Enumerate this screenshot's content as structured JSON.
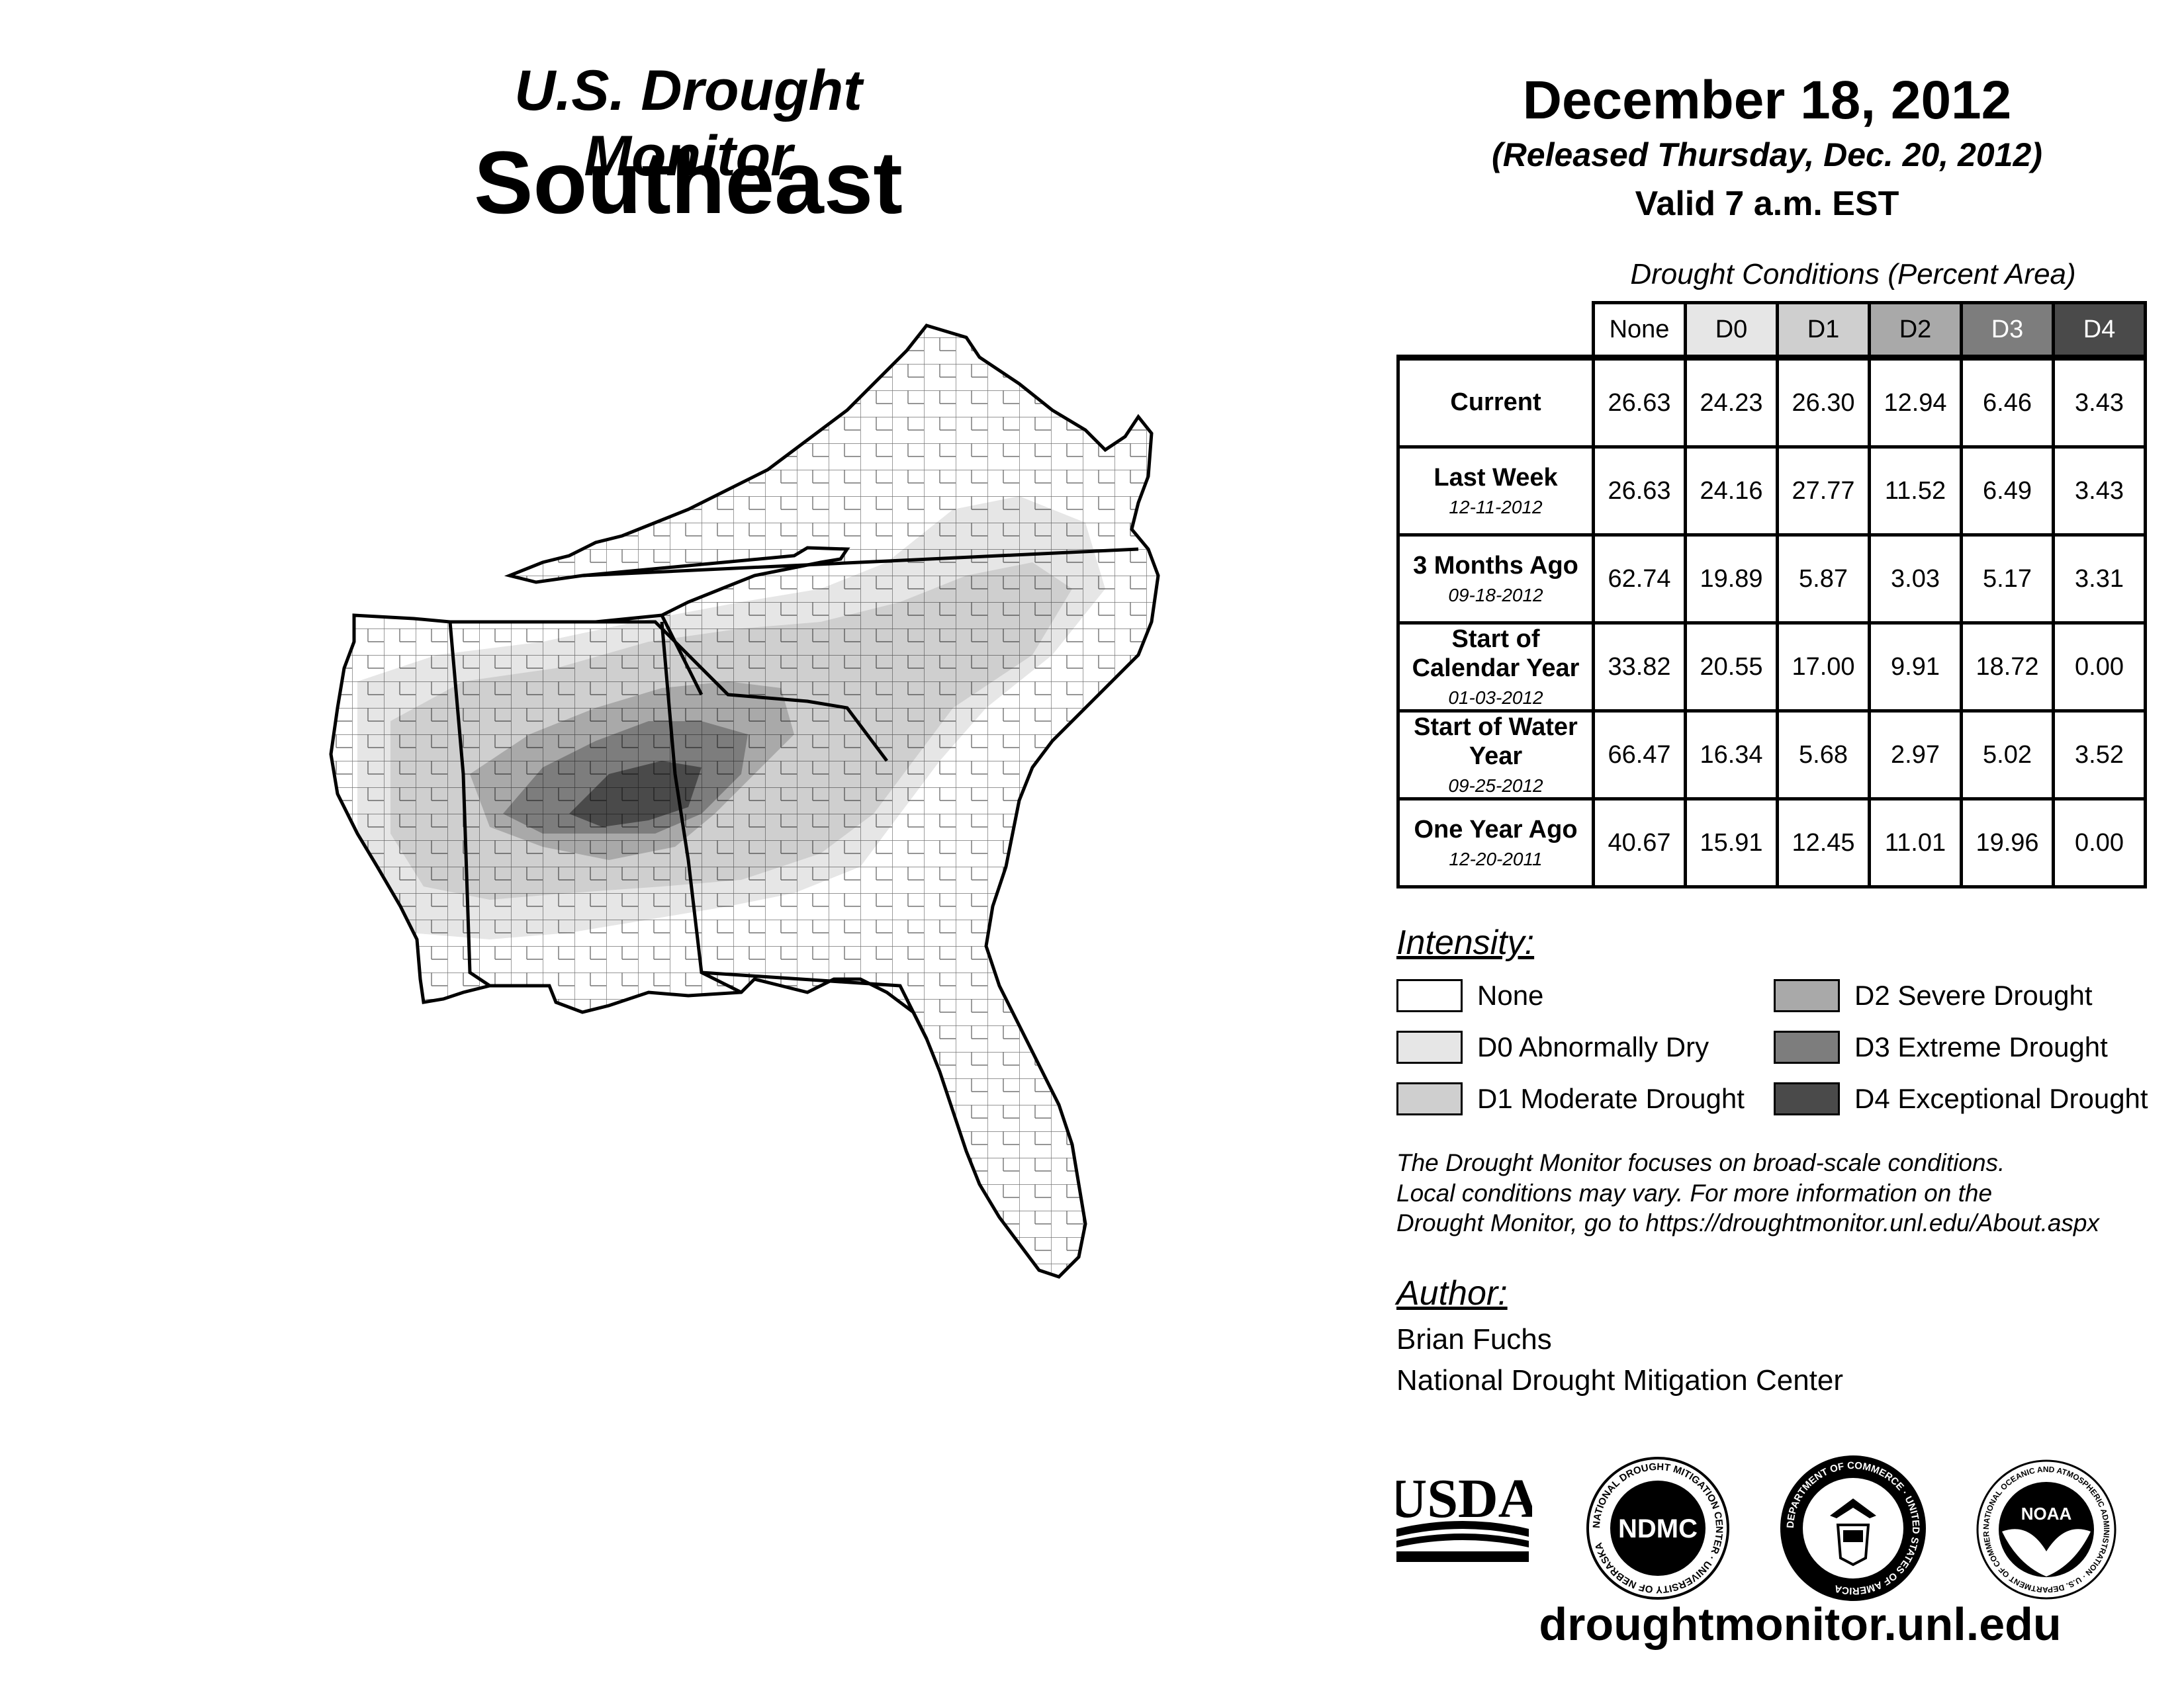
{
  "header": {
    "title": "U.S. Drought Monitor",
    "region": "Southeast",
    "date": "December 18, 2012",
    "released": "(Released Thursday, Dec. 20, 2012)",
    "valid": "Valid 7 a.m. EST"
  },
  "table": {
    "caption": "Drought Conditions (Percent Area)",
    "columns": [
      "None",
      "D0",
      "D1",
      "D2",
      "D3",
      "D4"
    ],
    "rows": [
      {
        "label": "Current",
        "date": "",
        "values": [
          "26.63",
          "24.23",
          "26.30",
          "12.94",
          "6.46",
          "3.43"
        ]
      },
      {
        "label": "Last Week",
        "date": "12-11-2012",
        "values": [
          "26.63",
          "24.16",
          "27.77",
          "11.52",
          "6.49",
          "3.43"
        ]
      },
      {
        "label": "3 Months Ago",
        "date": "09-18-2012",
        "values": [
          "62.74",
          "19.89",
          "5.87",
          "3.03",
          "5.17",
          "3.31"
        ]
      },
      {
        "label": "Start of Calendar Year",
        "date": "01-03-2012",
        "values": [
          "33.82",
          "20.55",
          "17.00",
          "9.91",
          "18.72",
          "0.00"
        ]
      },
      {
        "label": "Start of Water Year",
        "date": "09-25-2012",
        "values": [
          "66.47",
          "16.34",
          "5.68",
          "2.97",
          "5.02",
          "3.52"
        ]
      },
      {
        "label": "One Year Ago",
        "date": "12-20-2011",
        "values": [
          "40.67",
          "15.91",
          "12.45",
          "11.01",
          "19.96",
          "0.00"
        ]
      }
    ]
  },
  "intensity": {
    "title": "Intensity:",
    "items": [
      {
        "label": "None",
        "color": "#ffffff"
      },
      {
        "label": "D0 Abnormally Dry",
        "color": "#e6e6e6"
      },
      {
        "label": "D1 Moderate Drought",
        "color": "#cfcfcf"
      },
      {
        "label": "D2 Severe Drought",
        "color": "#a9a9a9"
      },
      {
        "label": "D3 Extreme Drought",
        "color": "#7d7d7d"
      },
      {
        "label": "D4 Exceptional Drought",
        "color": "#4a4a4a"
      }
    ]
  },
  "note": {
    "line1": "The Drought Monitor focuses on broad-scale conditions.",
    "line2": "Local conditions may vary. For more information on the",
    "line3": "Drought Monitor, go to https://droughtmonitor.unl.edu/About.aspx"
  },
  "author": {
    "title": "Author:",
    "name": "Brian Fuchs",
    "org": "National Drought Mitigation Center"
  },
  "logos": {
    "usda": "USDA",
    "ndmc": "NDMC",
    "ndmc_ring": "NATIONAL DROUGHT MITIGATION CENTER · UNIVERSITY OF NEBRASKA",
    "doc_ring": "DEPARTMENT OF COMMERCE · UNITED STATES OF AMERICA",
    "noaa": "NOAA",
    "noaa_ring": "NATIONAL OCEANIC AND ATMOSPHERIC ADMINISTRATION · U.S. DEPARTMENT OF COMMERCE"
  },
  "footer": {
    "url": "droughtmonitor.unl.edu"
  },
  "header_colors": [
    "#ffffff",
    "#e6e6e6",
    "#cfcfcf",
    "#a9a9a9",
    "#7d7d7d",
    "#4a4a4a"
  ]
}
